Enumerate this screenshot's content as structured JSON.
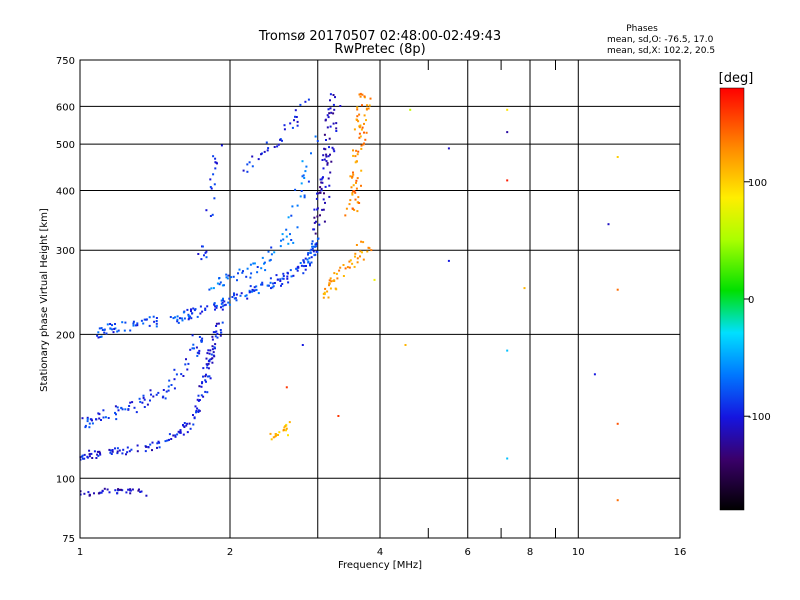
{
  "header": {
    "title": "Tromsø 20170507 02:48:00-02:49:43",
    "subtitle": "RwPretec (8p)",
    "stats_title": "Phases",
    "stats_o": "mean, sd,O: -76.5, 17.0",
    "stats_x": "mean, sd,X: 102.2, 20.5"
  },
  "chart_data": {
    "type": "scatter",
    "title": "Tromsø 20170507 02:48:00-02:49:43",
    "subtitle": "RwPretec (8p)",
    "xlabel": "Frequency [MHz]",
    "ylabel": "Stationary phase Virtual Height [km]",
    "x_scale": "log",
    "y_scale": "log",
    "xlim": [
      1,
      16
    ],
    "ylim": [
      75,
      750
    ],
    "x_ticks": [
      1,
      2,
      4,
      6,
      8,
      10,
      16
    ],
    "x_tick_labels": [
      "1",
      "2",
      "4",
      "6",
      "8",
      "10",
      "16"
    ],
    "x_grid": [
      2,
      3,
      4,
      6,
      8,
      10
    ],
    "x_minor": [
      5,
      7,
      9
    ],
    "y_ticks": [
      75,
      100,
      200,
      300,
      400,
      500,
      600,
      750
    ],
    "y_tick_labels": [
      "75",
      "100",
      "200",
      "300",
      "400",
      "500",
      "600",
      "750"
    ],
    "y_grid": [
      100,
      200,
      300,
      400,
      500,
      600
    ],
    "grid": true,
    "colorbar": {
      "label": "[deg]",
      "range": [
        -180,
        180
      ],
      "ticks": [
        -100,
        0,
        100
      ],
      "tick_labels": [
        "-100",
        "0",
        "100"
      ]
    },
    "traces": [
      {
        "x": [
          1.0,
          1.03,
          1.06,
          1.1,
          1.15,
          1.2,
          1.25,
          1.3,
          1.35
        ],
        "h": [
          93,
          93,
          93,
          94,
          94,
          94,
          94,
          94,
          93
        ],
        "phase": -110,
        "spread": 0.012,
        "density": 5
      },
      {
        "x": [
          1.0,
          1.05,
          1.15,
          1.3,
          1.45,
          1.6,
          1.7,
          1.76,
          1.8,
          1.83,
          1.86,
          1.9
        ],
        "h": [
          110,
          112,
          113,
          115,
          118,
          125,
          135,
          150,
          165,
          180,
          195,
          210
        ],
        "phase": -100,
        "spread": 0.02,
        "density": 14
      },
      {
        "x": [
          1.0,
          1.05,
          1.1,
          1.2,
          1.3,
          1.4,
          1.5,
          1.6,
          1.7,
          1.75
        ],
        "h": [
          130,
          132,
          135,
          138,
          142,
          148,
          155,
          168,
          185,
          200
        ],
        "phase": -90,
        "spread": 0.03,
        "density": 10
      },
      {
        "x": [
          1.08,
          1.15,
          1.3,
          1.5,
          1.65,
          1.8,
          1.95,
          2.1,
          2.3,
          2.5,
          2.7,
          2.85,
          2.95,
          3.0
        ],
        "h": [
          200,
          205,
          210,
          215,
          220,
          225,
          232,
          240,
          250,
          258,
          270,
          285,
          300,
          315
        ],
        "phase": -85,
        "spread": 0.025,
        "density": 16
      },
      {
        "x": [
          1.85,
          2.0,
          2.2,
          2.4,
          2.6,
          2.8,
          2.95
        ],
        "h": [
          255,
          260,
          270,
          285,
          320,
          400,
          520
        ],
        "phase": -70,
        "spread": 0.03,
        "density": 12
      },
      {
        "x": [
          1.75,
          1.8,
          1.85,
          1.9
        ],
        "h": [
          280,
          340,
          420,
          500
        ],
        "phase": -95,
        "spread": 0.02,
        "density": 8
      },
      {
        "x": [
          2.1,
          2.3,
          2.5,
          2.7,
          2.85
        ],
        "h": [
          440,
          470,
          500,
          560,
          620
        ],
        "phase": -95,
        "spread": 0.03,
        "density": 8
      },
      {
        "x": [
          3.0,
          3.05,
          3.1,
          3.15,
          3.2,
          3.25
        ],
        "h": [
          330,
          380,
          420,
          480,
          550,
          630
        ],
        "phase": -115,
        "spread": 0.03,
        "density": 16
      },
      {
        "x": [
          3.5,
          3.55,
          3.6,
          3.65,
          3.7,
          3.75
        ],
        "h": [
          350,
          400,
          450,
          520,
          580,
          640
        ],
        "phase": 130,
        "spread": 0.03,
        "density": 16
      },
      {
        "x": [
          3.0,
          3.2,
          3.4,
          3.6,
          3.75
        ],
        "h": [
          240,
          255,
          270,
          290,
          310
        ],
        "phase": 125,
        "spread": 0.03,
        "density": 12
      },
      {
        "x": [
          2.45,
          2.55,
          2.65
        ],
        "h": [
          122,
          124,
          130
        ],
        "phase": 110,
        "spread": 0.02,
        "density": 10
      }
    ],
    "points": [
      {
        "x": 5.5,
        "h": 490,
        "phase": -110
      },
      {
        "x": 5.5,
        "h": 285,
        "phase": -100
      },
      {
        "x": 7.2,
        "h": 530,
        "phase": -120
      },
      {
        "x": 7.2,
        "h": 185,
        "phase": -40
      },
      {
        "x": 7.2,
        "h": 110,
        "phase": -40
      },
      {
        "x": 7.2,
        "h": 420,
        "phase": 170
      },
      {
        "x": 7.2,
        "h": 590,
        "phase": 90
      },
      {
        "x": 7.8,
        "h": 250,
        "phase": 110
      },
      {
        "x": 10.8,
        "h": 165,
        "phase": -100
      },
      {
        "x": 11.5,
        "h": 340,
        "phase": -110
      },
      {
        "x": 12.0,
        "h": 470,
        "phase": 100
      },
      {
        "x": 12.0,
        "h": 248,
        "phase": 140
      },
      {
        "x": 12.0,
        "h": 130,
        "phase": 150
      },
      {
        "x": 12.0,
        "h": 90,
        "phase": 140
      },
      {
        "x": 4.6,
        "h": 590,
        "phase": 60
      },
      {
        "x": 4.5,
        "h": 190,
        "phase": 110
      },
      {
        "x": 3.9,
        "h": 260,
        "phase": 80
      },
      {
        "x": 3.3,
        "h": 135,
        "phase": 160
      },
      {
        "x": 2.8,
        "h": 190,
        "phase": -100
      },
      {
        "x": 2.6,
        "h": 155,
        "phase": 160
      }
    ]
  }
}
